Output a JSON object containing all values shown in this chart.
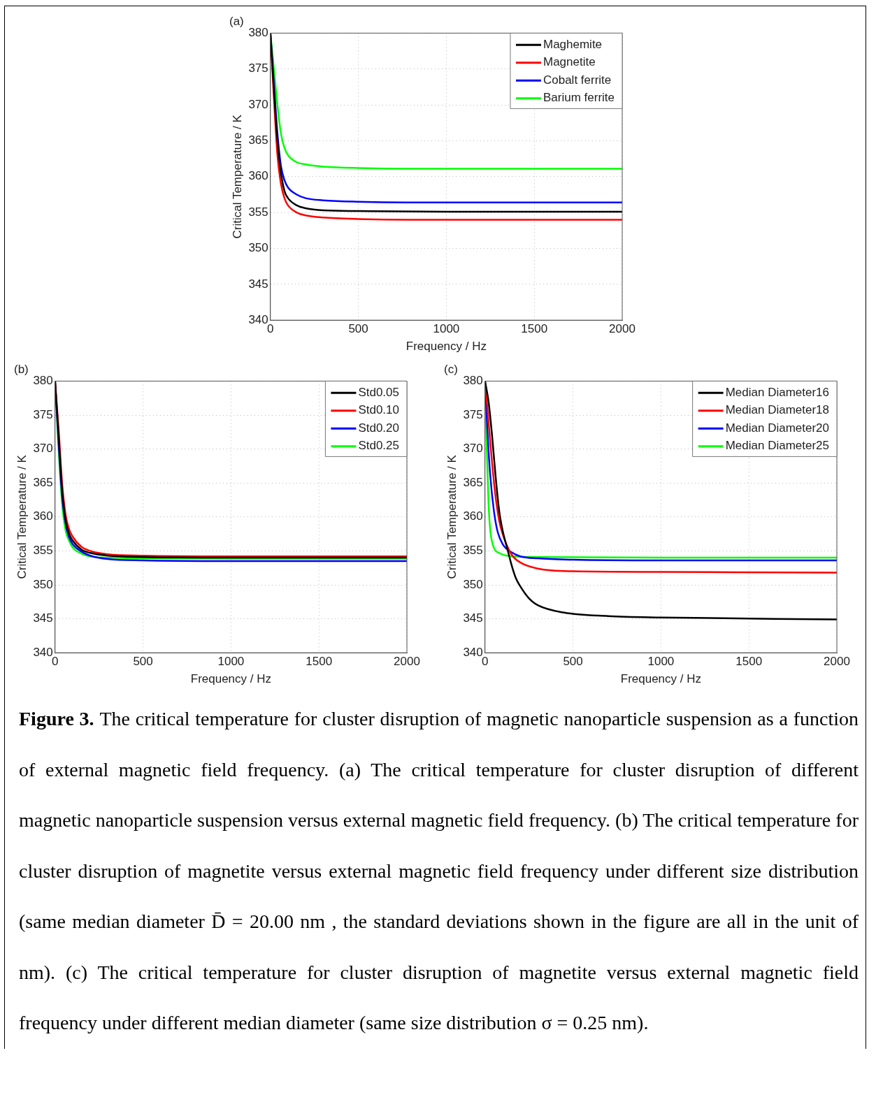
{
  "chart_data": [
    {
      "type": "line",
      "title": "(a)",
      "xlabel": "Frequency / Hz",
      "ylabel": "Critical Temperature / K",
      "xlim": [
        0,
        2000
      ],
      "xticks": [
        0,
        500,
        1000,
        1500,
        2000
      ],
      "ylim": [
        340,
        380
      ],
      "yticks": [
        340,
        345,
        350,
        355,
        360,
        365,
        370,
        375,
        380
      ],
      "grid": true,
      "legend": "top right",
      "marker": "none",
      "line_style": "solid",
      "series": [
        {
          "name": "Maghemite",
          "color": "#000000",
          "x": [
            0,
            20,
            40,
            60,
            80,
            100,
            150,
            200,
            300,
            500,
            1000,
            2000
          ],
          "values": [
            380,
            372,
            365,
            360.5,
            358,
            357,
            356,
            355.6,
            355.3,
            355.2,
            355.1,
            355.1
          ]
        },
        {
          "name": "Magnetite",
          "color": "#ff0000",
          "x": [
            0,
            20,
            40,
            60,
            80,
            100,
            150,
            200,
            300,
            500,
            1000,
            2000
          ],
          "values": [
            380,
            371,
            363,
            359,
            357,
            356,
            355,
            354.6,
            354.3,
            354.1,
            354,
            354
          ]
        },
        {
          "name": "Cobalt ferrite",
          "color": "#0000ff",
          "x": [
            0,
            20,
            40,
            60,
            80,
            100,
            150,
            200,
            300,
            500,
            1000,
            2000
          ],
          "values": [
            380,
            373,
            366,
            361.5,
            359.5,
            358.5,
            357.5,
            357,
            356.7,
            356.5,
            356.4,
            356.4
          ]
        },
        {
          "name": "Barium ferrite",
          "color": "#00ff00",
          "x": [
            0,
            20,
            40,
            60,
            80,
            100,
            150,
            200,
            300,
            500,
            1000,
            2000
          ],
          "values": [
            380,
            375,
            370,
            366,
            364,
            363,
            362,
            361.7,
            361.4,
            361.2,
            361.1,
            361.1
          ]
        }
      ]
    },
    {
      "type": "line",
      "title": "(b)",
      "xlabel": "Frequency / Hz",
      "ylabel": "Critical Temperature / K",
      "xlim": [
        0,
        2000
      ],
      "xticks": [
        0,
        500,
        1000,
        1500,
        2000
      ],
      "ylim": [
        340,
        380
      ],
      "yticks": [
        340,
        345,
        350,
        355,
        360,
        365,
        370,
        375,
        380
      ],
      "grid": true,
      "legend": "top right",
      "marker": "none",
      "line_style": "solid",
      "series": [
        {
          "name": "Std0.05",
          "color": "#000000",
          "x": [
            0,
            20,
            40,
            60,
            80,
            100,
            150,
            200,
            300,
            500,
            1000,
            2000
          ],
          "values": [
            380,
            372,
            364,
            359.5,
            357.5,
            356.5,
            355.2,
            354.7,
            354.3,
            354.1,
            354,
            354
          ]
        },
        {
          "name": "Std0.10",
          "color": "#ff0000",
          "x": [
            0,
            20,
            40,
            60,
            80,
            100,
            150,
            200,
            300,
            500,
            1000,
            2000
          ],
          "values": [
            380,
            373,
            365,
            360.3,
            358.2,
            357.1,
            355.6,
            355,
            354.5,
            354.3,
            354.2,
            354.2
          ]
        },
        {
          "name": "Std0.20",
          "color": "#0000ff",
          "x": [
            0,
            20,
            40,
            60,
            80,
            100,
            150,
            200,
            300,
            500,
            1000,
            2000
          ],
          "values": [
            380,
            371,
            363,
            359,
            357,
            356,
            354.9,
            354.3,
            353.8,
            353.6,
            353.5,
            353.5
          ]
        },
        {
          "name": "Std0.25",
          "color": "#00ff00",
          "x": [
            0,
            20,
            40,
            60,
            80,
            100,
            150,
            200,
            300,
            500,
            1000,
            2000
          ],
          "values": [
            380,
            370,
            362,
            358,
            356.5,
            355.5,
            354.6,
            354.2,
            354,
            353.9,
            353.85,
            353.85
          ]
        }
      ]
    },
    {
      "type": "line",
      "title": "(c)",
      "xlabel": "Frequency / Hz",
      "ylabel": "Critical Temperature / K",
      "xlim": [
        0,
        2000
      ],
      "xticks": [
        0,
        500,
        1000,
        1500,
        2000
      ],
      "ylim": [
        340,
        380
      ],
      "yticks": [
        340,
        345,
        350,
        355,
        360,
        365,
        370,
        375,
        380
      ],
      "grid": true,
      "legend": "top right",
      "marker": "none",
      "line_style": "solid",
      "series": [
        {
          "name": "Median Diameter16",
          "color": "#000000",
          "x": [
            0,
            20,
            40,
            60,
            80,
            100,
            130,
            150,
            175,
            200,
            250,
            300,
            450,
            700,
            1000,
            2000
          ],
          "values": [
            380,
            377,
            372,
            366,
            361,
            358,
            355,
            353,
            351,
            349.8,
            348,
            347,
            345.9,
            345.4,
            345.2,
            344.9
          ]
        },
        {
          "name": "Median Diameter18",
          "color": "#ff0000",
          "x": [
            0,
            20,
            40,
            60,
            80,
            100,
            150,
            200,
            300,
            500,
            1000,
            2000
          ],
          "values": [
            380,
            374,
            368,
            363,
            359.5,
            357.5,
            354.5,
            353.3,
            352.4,
            352,
            351.9,
            351.8
          ]
        },
        {
          "name": "Median Diameter20",
          "color": "#0000ff",
          "x": [
            0,
            15,
            30,
            50,
            70,
            100,
            150,
            200,
            300,
            500,
            1000,
            2000
          ],
          "values": [
            380,
            372,
            366,
            361,
            358,
            356,
            354.8,
            354.2,
            353.9,
            353.7,
            353.6,
            353.6
          ]
        },
        {
          "name": "Median Diameter25",
          "color": "#00ff00",
          "x": [
            0,
            10,
            20,
            30,
            50,
            80,
            150,
            300,
            1000,
            2000
          ],
          "values": [
            380,
            370,
            362,
            358,
            355.5,
            354.7,
            354.2,
            354.1,
            354,
            354
          ]
        }
      ]
    },
    {
      "type": "other",
      "title": "Figure 3.",
      "annotations": [
        "The critical temperature for cluster disruption of magnetic nanoparticle suspension as a function of external magnetic field frequency. (a) The critical temperature for cluster disruption of different magnetic nanoparticle suspension versus external magnetic field frequency. (b) The critical temperature for cluster disruption of magnetite versus external magnetic field frequency under different size distribution (same median diameter D̄ = 20.00 nm , the standard deviations shown in the figure are all in the unit of nm). (c) The critical temperature for cluster disruption of magnetite versus external magnetic field frequency under different median diameter (same size distribution σ = 0.25 nm)."
      ]
    }
  ]
}
